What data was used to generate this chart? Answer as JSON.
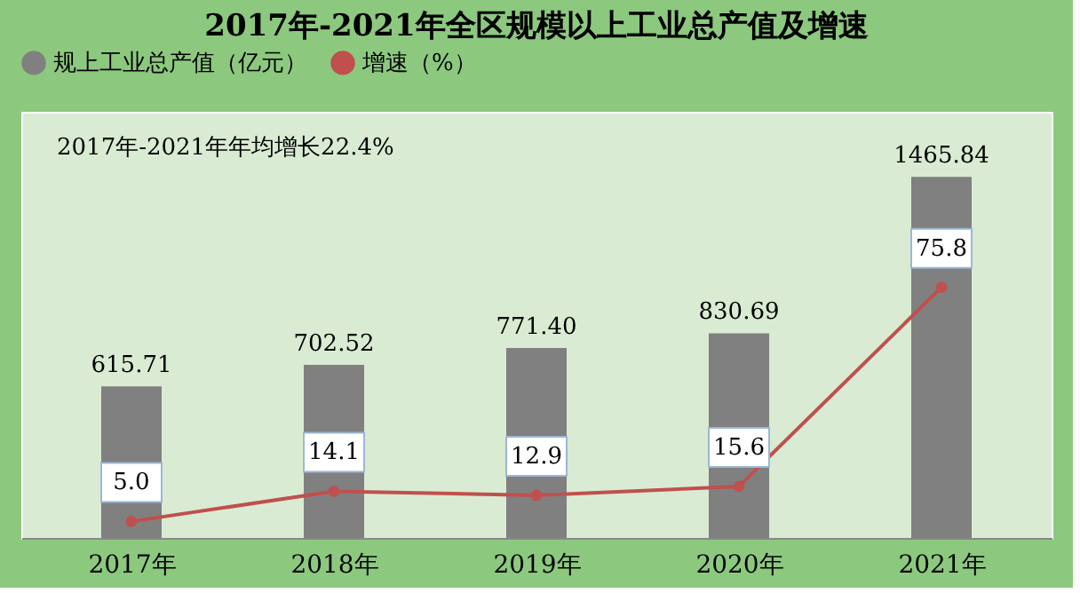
{
  "chart_data": {
    "type": "bar",
    "title": "2017年-2021年全区规模以上工业总产值及增速",
    "categories": [
      "2017年",
      "2018年",
      "2019年",
      "2020年",
      "2021年"
    ],
    "series": [
      {
        "name": "规上工业总产值（亿元）",
        "color": "#808080",
        "values": [
          615.71,
          702.52,
          771.4,
          830.69,
          1465.84
        ],
        "value_labels": [
          "615.71",
          "702.52",
          "771.40",
          "830.69",
          "1465.84"
        ]
      },
      {
        "name": "增速（%）",
        "type": "line",
        "axis": "y2",
        "color": "#c0504d",
        "marker": "circle",
        "values": [
          5.0,
          14.1,
          12.9,
          15.6,
          75.8
        ],
        "value_labels": [
          "5.0",
          "14.1",
          "12.9",
          "15.6",
          "75.8"
        ]
      }
    ],
    "annotations": [
      "2017年-2021年年均增长22.4%"
    ],
    "legend": "top",
    "tick_labels": "x"
  }
}
